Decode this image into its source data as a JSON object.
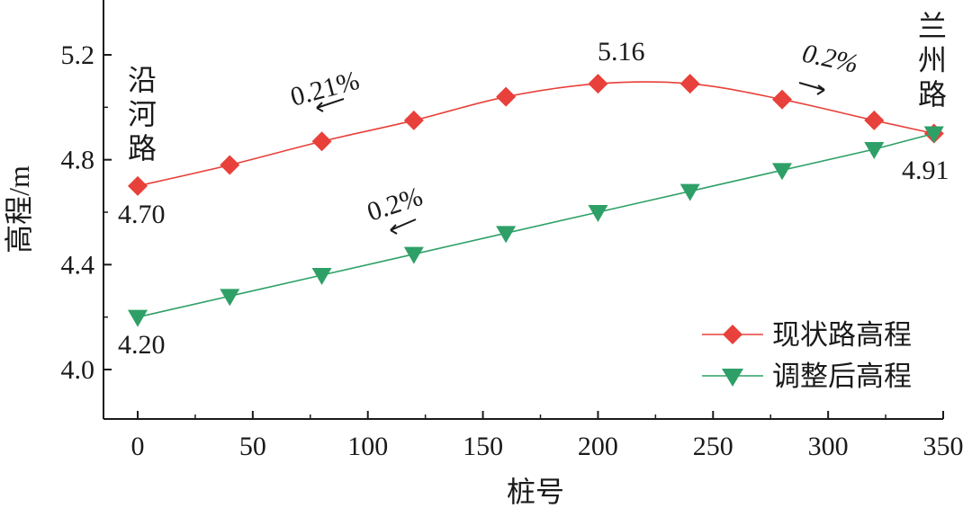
{
  "chart_data": {
    "type": "line",
    "xlabel": "桩号",
    "ylabel": "高程/m",
    "xlim": [
      -30,
      350
    ],
    "ylim": [
      3.8,
      5.4
    ],
    "xticks": [
      0,
      50,
      100,
      150,
      200,
      250,
      300,
      350
    ],
    "yticks": [
      4.0,
      4.4,
      4.8,
      5.2
    ],
    "x_tick_labels": [
      "0",
      "50",
      "100",
      "150",
      "200",
      "250",
      "300",
      "350"
    ],
    "y_tick_labels": [
      "4.0",
      "4.4",
      "4.8",
      "5.2"
    ],
    "legend_position": "bottom-right",
    "series": [
      {
        "name": "现状路高程",
        "color": "#e8403a",
        "marker": "diamond",
        "x": [
          0,
          40,
          80,
          120,
          160,
          200,
          240,
          280,
          320,
          346
        ],
        "y": [
          4.7,
          4.78,
          4.87,
          4.95,
          5.04,
          5.09,
          5.09,
          5.03,
          4.95,
          4.9
        ]
      },
      {
        "name": "调整后高程",
        "color": "#2ea067",
        "marker": "triangle-down",
        "x": [
          0,
          40,
          80,
          120,
          160,
          200,
          240,
          280,
          320,
          346
        ],
        "y": [
          4.2,
          4.28,
          4.36,
          4.44,
          4.52,
          4.6,
          4.68,
          4.76,
          4.84,
          4.9
        ]
      }
    ],
    "annotations": {
      "start_existing": "4.70",
      "start_adjusted": "4.20",
      "peak": "5.16",
      "end": "4.91",
      "grade_up_existing": "0.21%",
      "grade_down_existing": "0.2%",
      "grade_adjusted": "0.2%"
    },
    "road_labels": {
      "left": [
        "沿",
        "河",
        "路"
      ],
      "right": [
        "兰",
        "州",
        "路"
      ]
    }
  }
}
